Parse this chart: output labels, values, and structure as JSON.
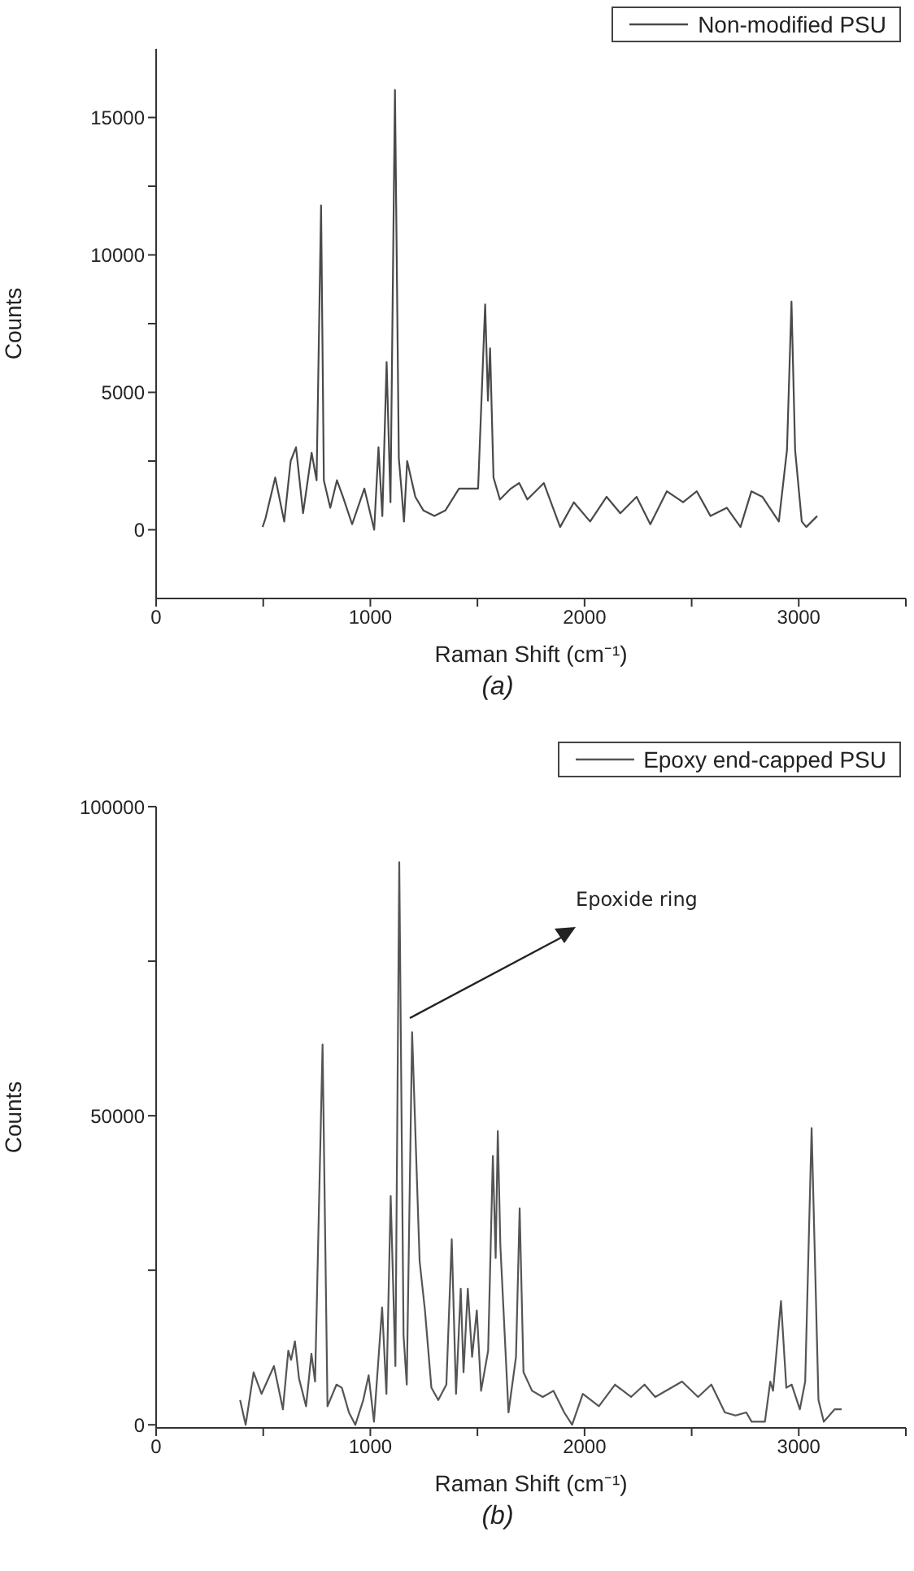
{
  "chart_data": [
    {
      "type": "line",
      "xlabel": "Raman Shift (cm⁻¹)",
      "ylabel": "Counts",
      "legend": "top right",
      "annotations": [
        "(a)"
      ],
      "xlim": [
        0,
        3500
      ],
      "xticks": [
        0,
        {
          "value": 500,
          "label": null
        },
        1000,
        {
          "value": 1500,
          "label": null
        },
        2000,
        {
          "value": 2500,
          "label": null
        },
        3000,
        {
          "value": 3500,
          "label": null
        }
      ],
      "ylim": [
        -2500,
        17500
      ],
      "yticks": [
        0,
        {
          "value": 2500,
          "label": null
        },
        5000,
        {
          "value": 7500,
          "label": null
        },
        10000,
        {
          "value": 12500,
          "label": null
        },
        15000
      ],
      "series": [
        {
          "name": "Non-modified PSU",
          "color": "#4a4a4a",
          "x": [
            497,
            510,
            556,
            598,
            628,
            653,
            686,
            726,
            749,
            770,
            783,
            813,
            844,
            872,
            915,
            972,
            1018,
            1038,
            1056,
            1076,
            1094,
            1115,
            1133,
            1146,
            1157,
            1172,
            1210,
            1248,
            1299,
            1350,
            1414,
            1452,
            1503,
            1536,
            1549,
            1559,
            1575,
            1605,
            1656,
            1695,
            1733,
            1810,
            1886,
            1950,
            2026,
            2103,
            2167,
            2243,
            2307,
            2384,
            2460,
            2524,
            2588,
            2664,
            2728,
            2779,
            2830,
            2907,
            2945,
            2966,
            2983,
            3014,
            3035,
            3086
          ],
          "values": [
            100,
            400,
            1900,
            300,
            2500,
            3000,
            600,
            2800,
            1800,
            11800,
            1800,
            800,
            1800,
            1200,
            200,
            1500,
            0,
            3000,
            500,
            6100,
            1000,
            16000,
            2600,
            1400,
            300,
            2500,
            1200,
            700,
            500,
            700,
            1500,
            1500,
            1500,
            8200,
            4700,
            6600,
            1900,
            1100,
            1500,
            1700,
            1100,
            1700,
            100,
            1000,
            300,
            1200,
            600,
            1200,
            200,
            1400,
            1000,
            1400,
            500,
            800,
            100,
            1400,
            1200,
            300,
            2900,
            8300,
            2900,
            300,
            100,
            500
          ]
        }
      ]
    },
    {
      "type": "line",
      "xlabel": "Raman Shift (cm⁻¹)",
      "ylabel": "Counts",
      "legend": "top right",
      "annotations": [
        "(b)",
        "Epoxide ring"
      ],
      "xlim": [
        0,
        3500
      ],
      "xticks": [
        0,
        {
          "value": 500,
          "label": null
        },
        1000,
        {
          "value": 1500,
          "label": null
        },
        2000,
        {
          "value": 2500,
          "label": null
        },
        3000,
        {
          "value": 3500,
          "label": null
        }
      ],
      "ylim": [
        -500,
        100000
      ],
      "yticks": [
        0,
        {
          "value": 25000,
          "label": null
        },
        50000,
        {
          "value": 75000,
          "label": null
        },
        100000
      ],
      "series": [
        {
          "name": "Epoxy end-capped PSU",
          "color": "#555555",
          "x": [
            392,
            418,
            455,
            492,
            550,
            592,
            617,
            630,
            648,
            667,
            700,
            725,
            742,
            777,
            800,
            842,
            867,
            900,
            930,
            967,
            992,
            1017,
            1055,
            1075,
            1095,
            1117,
            1135,
            1155,
            1170,
            1195,
            1230,
            1255,
            1285,
            1317,
            1355,
            1380,
            1400,
            1422,
            1435,
            1455,
            1475,
            1497,
            1517,
            1550,
            1572,
            1585,
            1595,
            1607,
            1645,
            1680,
            1697,
            1715,
            1755,
            1805,
            1855,
            1905,
            1942,
            1992,
            2067,
            2142,
            2217,
            2280,
            2330,
            2455,
            2530,
            2592,
            2655,
            2705,
            2755,
            2780,
            2842,
            2867,
            2880,
            2917,
            2942,
            2967,
            3005,
            3030,
            3060,
            3092,
            3117,
            3167,
            3200
          ],
          "values": [
            4000,
            0,
            8500,
            5000,
            9500,
            2500,
            12000,
            10500,
            13500,
            7500,
            3000,
            11500,
            7000,
            61500,
            3000,
            6500,
            6000,
            2000,
            0,
            4000,
            8000,
            500,
            19000,
            5000,
            37000,
            9500,
            91000,
            14500,
            6500,
            63500,
            26500,
            18500,
            6000,
            4000,
            6500,
            30000,
            5000,
            22000,
            8500,
            22000,
            11000,
            18500,
            5500,
            12000,
            43500,
            27000,
            47500,
            29000,
            2000,
            11000,
            35000,
            8500,
            5500,
            4500,
            5500,
            2000,
            0,
            5000,
            3000,
            6500,
            4500,
            6500,
            4500,
            7000,
            4500,
            6500,
            2000,
            1500,
            2000,
            500,
            500,
            7000,
            5500,
            20000,
            6000,
            6500,
            2500,
            7000,
            48000,
            4000,
            500,
            2500,
            2500
          ]
        }
      ]
    }
  ]
}
